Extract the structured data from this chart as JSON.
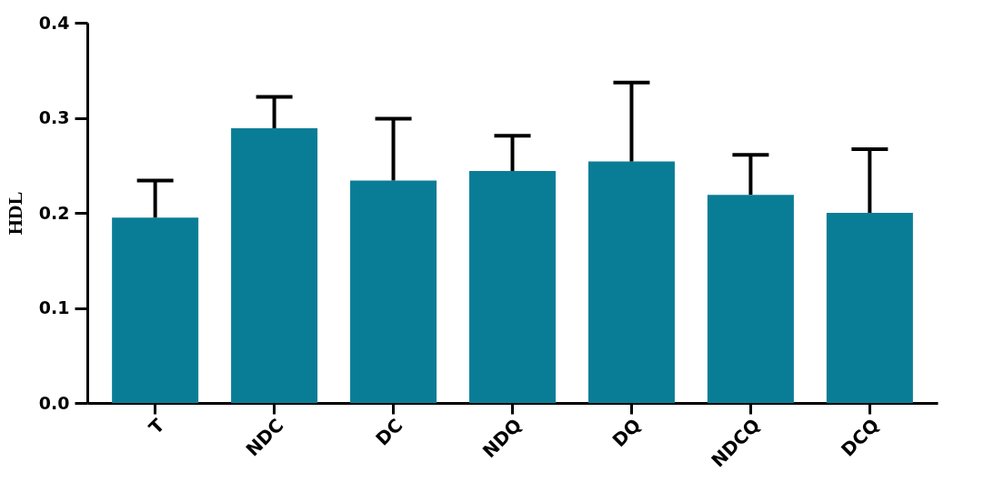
{
  "chart_data": {
    "type": "bar",
    "ylabel": "HDL",
    "categories": [
      "T",
      "NDC",
      "DC",
      "NDQ",
      "DQ",
      "NDCQ",
      "DCQ"
    ],
    "values": [
      0.195,
      0.289,
      0.234,
      0.244,
      0.254,
      0.219,
      0.2
    ],
    "errors": [
      [
        0.195,
        0.234
      ],
      [
        0.289,
        0.322
      ],
      [
        0.234,
        0.299
      ],
      [
        0.244,
        0.281
      ],
      [
        0.254,
        0.337
      ],
      [
        0.219,
        0.261
      ],
      [
        0.2,
        0.267
      ]
    ],
    "color": "#0a7d96",
    "ylim": [
      0,
      0.4
    ],
    "yticks": [
      {
        "value": 0,
        "label": "0.0"
      },
      {
        "value": 0.1,
        "label": "0.1"
      },
      {
        "value": 0.2,
        "label": "0.2"
      },
      {
        "value": 0.3,
        "label": "0.3"
      },
      {
        "value": 0.4,
        "label": "0.4"
      }
    ],
    "grid": false
  }
}
